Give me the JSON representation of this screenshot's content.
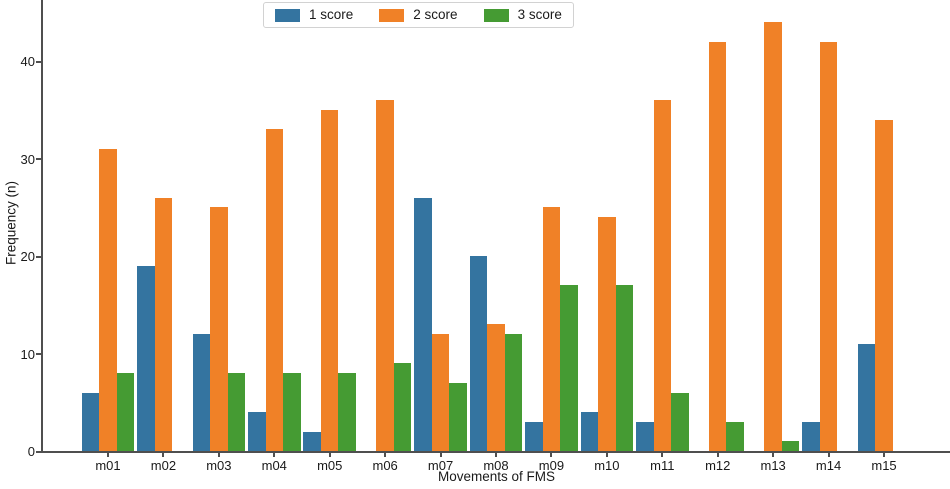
{
  "chart_data": {
    "type": "bar",
    "title": "",
    "xlabel": "Movements of FMS",
    "ylabel": "Frequency (n)",
    "categories": [
      "m01",
      "m02",
      "m03",
      "m04",
      "m05",
      "m06",
      "m07",
      "m08",
      "m09",
      "m10",
      "m11",
      "m12",
      "m13",
      "m14",
      "m15"
    ],
    "series": [
      {
        "name": "1 score",
        "color": "#3474a0",
        "values": [
          6,
          19,
          12,
          4,
          2,
          0,
          26,
          20,
          3,
          4,
          3,
          0,
          0,
          3,
          11
        ]
      },
      {
        "name": "2 score",
        "color": "#f08127",
        "values": [
          31,
          26,
          25,
          33,
          35,
          36,
          12,
          13,
          25,
          24,
          36,
          42,
          44,
          42,
          34
        ]
      },
      {
        "name": "3 score",
        "color": "#459b33",
        "values": [
          8,
          0,
          8,
          8,
          8,
          9,
          7,
          12,
          17,
          17,
          6,
          3,
          1,
          0,
          0
        ]
      }
    ],
    "yticks": [
      0,
      10,
      20,
      30,
      40
    ],
    "ylim": [
      0,
      46.3
    ],
    "grid": false,
    "legend_position": "upper center"
  }
}
